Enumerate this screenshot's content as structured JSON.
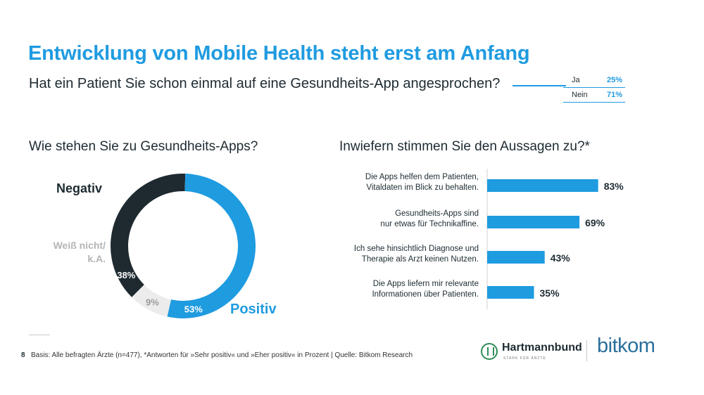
{
  "header": {
    "title": "Entwicklung von Mobile Health steht erst am Anfang",
    "subtitle": "Hat ein Patient Sie schon einmal auf eine Gesundheits-App angesprochen?",
    "answers": [
      {
        "label": "Ja",
        "value": "25%"
      },
      {
        "label": "Nein",
        "value": "71%"
      }
    ]
  },
  "chart_data": [
    {
      "type": "pie",
      "title": "Wie stehen Sie zu Gesundheits-Apps?",
      "slices": [
        {
          "name": "Negativ",
          "value": 38,
          "label": "38%"
        },
        {
          "name": "Positiv",
          "value": 53,
          "label": "53%"
        },
        {
          "name": "Weiß nicht/ k.A.",
          "name_lines": [
            "Weiß nicht/",
            "k.A."
          ],
          "value": 9,
          "label": "9%"
        }
      ],
      "colors": {
        "Negativ": "#1e2a30",
        "Positiv": "#1f9be0",
        "Weiß nicht/ k.A.": "#ececec"
      }
    },
    {
      "type": "bar",
      "orientation": "horizontal",
      "title": "Inwiefern stimmen Sie den Aussagen zu?*",
      "categories": [
        [
          "Die Apps helfen dem Patienten,",
          "Vitaldaten im Blick zu behalten."
        ],
        [
          "Gesundheits-Apps sind",
          "nur etwas für Technikaffine."
        ],
        [
          "Ich sehe hinsichtlich Diagnose und",
          "Therapie als Arzt keinen Nutzen."
        ],
        [
          "Die Apps liefern mir relevante",
          "Informationen über Patienten."
        ]
      ],
      "values": [
        83,
        69,
        43,
        35
      ],
      "value_labels": [
        "83%",
        "69%",
        "43%",
        "35%"
      ],
      "xlim": [
        0,
        100
      ],
      "color": "#1f9be0"
    }
  ],
  "footer": {
    "page_number": "8",
    "source": "Basis: Alle befragten Ärzte (n=477), *Antworten für »Sehr positiv« und »Eher positiv« in Prozent | Quelle: Bitkom Research"
  },
  "logos": {
    "hartmannbund_name": "Hartmannbund",
    "hartmannbund_tagline": "STARK FÜR ÄRZTE",
    "bitkom": "bitkom"
  },
  "colors": {
    "accent": "#1f9be0",
    "dark": "#1e2a30",
    "light_gray": "#ececec"
  }
}
